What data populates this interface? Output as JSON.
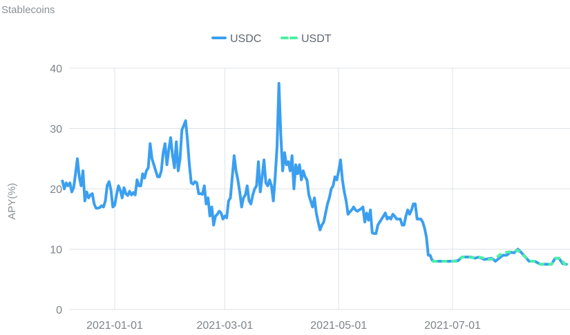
{
  "chart_data": {
    "type": "line",
    "title": "Stablecoins",
    "xlabel": "",
    "ylabel": "APY(%)",
    "ylim": [
      0,
      40
    ],
    "xlim": [
      "2020-12-01",
      "2021-08-31"
    ],
    "y_ticks": [
      "0",
      "10",
      "20",
      "30",
      "40"
    ],
    "x_ticks": [
      "2021-01-01",
      "2021-03-01",
      "2021-05-01",
      "2021-07-01"
    ],
    "grid": "vertical-and-horizontal",
    "legend": {
      "placement": "top-center"
    },
    "series": [
      {
        "name": "USDC",
        "color": "#3b9ff0",
        "dash": "solid",
        "points": [
          [
            "2020-12-04",
            21.3
          ],
          [
            "2020-12-05",
            20.0
          ],
          [
            "2020-12-06",
            21.0
          ],
          [
            "2020-12-07",
            20.5
          ],
          [
            "2020-12-08",
            21.0
          ],
          [
            "2020-12-09",
            19.5
          ],
          [
            "2020-12-10",
            20.2
          ],
          [
            "2020-12-11",
            22.5
          ],
          [
            "2020-12-12",
            25.0
          ],
          [
            "2020-12-13",
            22.0
          ],
          [
            "2020-12-14",
            20.5
          ],
          [
            "2020-12-15",
            23.0
          ],
          [
            "2020-12-16",
            18.0
          ],
          [
            "2020-12-17",
            19.5
          ],
          [
            "2020-12-18",
            18.5
          ],
          [
            "2020-12-19",
            19.0
          ],
          [
            "2020-12-20",
            19.2
          ],
          [
            "2020-12-21",
            17.5
          ],
          [
            "2020-12-22",
            16.8
          ],
          [
            "2020-12-23",
            16.8
          ],
          [
            "2020-12-24",
            16.9
          ],
          [
            "2020-12-25",
            17.2
          ],
          [
            "2020-12-26",
            17.0
          ],
          [
            "2020-12-27",
            18.0
          ],
          [
            "2020-12-28",
            20.6
          ],
          [
            "2020-12-29",
            21.2
          ],
          [
            "2020-12-30",
            19.8
          ],
          [
            "2020-12-31",
            17.0
          ],
          [
            "2021-01-01",
            17.3
          ],
          [
            "2021-01-02",
            19.0
          ],
          [
            "2021-01-03",
            20.5
          ],
          [
            "2021-01-04",
            19.8
          ],
          [
            "2021-01-05",
            18.5
          ],
          [
            "2021-01-06",
            20.2
          ],
          [
            "2021-01-07",
            19.2
          ],
          [
            "2021-01-08",
            18.9
          ],
          [
            "2021-01-09",
            19.6
          ],
          [
            "2021-01-10",
            19.0
          ],
          [
            "2021-01-11",
            19.4
          ],
          [
            "2021-01-12",
            19.0
          ],
          [
            "2021-01-13",
            21.5
          ],
          [
            "2021-01-14",
            20.5
          ],
          [
            "2021-01-15",
            20.5
          ],
          [
            "2021-01-16",
            22.5
          ],
          [
            "2021-01-17",
            21.8
          ],
          [
            "2021-01-18",
            23.0
          ],
          [
            "2021-01-19",
            23.5
          ],
          [
            "2021-01-20",
            27.5
          ],
          [
            "2021-01-21",
            25.0
          ],
          [
            "2021-01-22",
            24.0
          ],
          [
            "2021-01-23",
            23.0
          ],
          [
            "2021-01-24",
            22.0
          ],
          [
            "2021-01-25",
            22.0
          ],
          [
            "2021-01-26",
            23.0
          ],
          [
            "2021-01-27",
            26.0
          ],
          [
            "2021-01-28",
            27.5
          ],
          [
            "2021-01-29",
            24.0
          ],
          [
            "2021-01-30",
            26.5
          ],
          [
            "2021-01-31",
            28.5
          ],
          [
            "2021-02-01",
            25.5
          ],
          [
            "2021-02-02",
            23.5
          ],
          [
            "2021-02-03",
            27.8
          ],
          [
            "2021-02-04",
            23.0
          ],
          [
            "2021-02-05",
            25.0
          ],
          [
            "2021-02-06",
            29.8
          ],
          [
            "2021-02-07",
            30.5
          ],
          [
            "2021-02-08",
            31.3
          ],
          [
            "2021-02-09",
            28.0
          ],
          [
            "2021-02-10",
            24.0
          ],
          [
            "2021-02-11",
            21.0
          ],
          [
            "2021-02-12",
            20.8
          ],
          [
            "2021-02-13",
            21.2
          ],
          [
            "2021-02-14",
            21.0
          ],
          [
            "2021-02-15",
            19.2
          ],
          [
            "2021-02-16",
            19.2
          ],
          [
            "2021-02-17",
            19.1
          ],
          [
            "2021-02-18",
            20.5
          ],
          [
            "2021-02-19",
            17.5
          ],
          [
            "2021-02-20",
            18.5
          ],
          [
            "2021-02-21",
            15.5
          ],
          [
            "2021-02-22",
            17.0
          ],
          [
            "2021-02-23",
            14.0
          ],
          [
            "2021-02-24",
            15.5
          ],
          [
            "2021-02-25",
            15.8
          ],
          [
            "2021-02-26",
            16.3
          ],
          [
            "2021-02-27",
            16.0
          ],
          [
            "2021-02-28",
            15.0
          ],
          [
            "2021-03-01",
            15.5
          ],
          [
            "2021-03-02",
            15.2
          ],
          [
            "2021-03-03",
            18.0
          ],
          [
            "2021-03-04",
            18.5
          ],
          [
            "2021-03-05",
            22.0
          ],
          [
            "2021-03-06",
            25.5
          ],
          [
            "2021-03-07",
            23.0
          ],
          [
            "2021-03-08",
            21.5
          ],
          [
            "2021-03-09",
            19.5
          ],
          [
            "2021-03-10",
            17.0
          ],
          [
            "2021-03-11",
            18.5
          ],
          [
            "2021-03-12",
            19.0
          ],
          [
            "2021-03-13",
            20.5
          ],
          [
            "2021-03-14",
            18.0
          ],
          [
            "2021-03-15",
            17.5
          ],
          [
            "2021-03-16",
            19.0
          ],
          [
            "2021-03-17",
            20.0
          ],
          [
            "2021-03-18",
            20.5
          ],
          [
            "2021-03-19",
            24.5
          ],
          [
            "2021-03-20",
            19.5
          ],
          [
            "2021-03-21",
            22.0
          ],
          [
            "2021-03-22",
            24.8
          ],
          [
            "2021-03-23",
            21.0
          ],
          [
            "2021-03-24",
            20.5
          ],
          [
            "2021-03-25",
            21.5
          ],
          [
            "2021-03-26",
            20.5
          ],
          [
            "2021-03-27",
            18.0
          ],
          [
            "2021-03-28",
            22.0
          ],
          [
            "2021-03-29",
            27.0
          ],
          [
            "2021-03-30",
            37.5
          ],
          [
            "2021-03-31",
            29.0
          ],
          [
            "2021-04-01",
            23.0
          ],
          [
            "2021-04-02",
            26.0
          ],
          [
            "2021-04-03",
            24.0
          ],
          [
            "2021-04-04",
            24.5
          ],
          [
            "2021-04-05",
            23.0
          ],
          [
            "2021-04-06",
            25.5
          ],
          [
            "2021-04-07",
            20.0
          ],
          [
            "2021-04-08",
            24.0
          ],
          [
            "2021-04-09",
            22.5
          ],
          [
            "2021-04-10",
            24.0
          ],
          [
            "2021-04-11",
            21.5
          ],
          [
            "2021-04-12",
            23.0
          ],
          [
            "2021-04-13",
            22.0
          ],
          [
            "2021-04-14",
            21.5
          ],
          [
            "2021-04-15",
            19.0
          ],
          [
            "2021-04-16",
            18.0
          ],
          [
            "2021-04-17",
            17.0
          ],
          [
            "2021-04-18",
            18.5
          ],
          [
            "2021-04-19",
            16.0
          ],
          [
            "2021-04-20",
            14.5
          ],
          [
            "2021-04-21",
            13.2
          ],
          [
            "2021-04-22",
            14.0
          ],
          [
            "2021-04-23",
            14.5
          ],
          [
            "2021-04-24",
            16.0
          ],
          [
            "2021-04-25",
            17.5
          ],
          [
            "2021-04-26",
            18.5
          ],
          [
            "2021-04-27",
            20.0
          ],
          [
            "2021-04-28",
            20.5
          ],
          [
            "2021-04-29",
            22.0
          ],
          [
            "2021-04-30",
            21.5
          ],
          [
            "2021-05-01",
            23.0
          ],
          [
            "2021-05-02",
            24.8
          ],
          [
            "2021-05-03",
            21.5
          ],
          [
            "2021-05-04",
            19.5
          ],
          [
            "2021-05-05",
            18.0
          ],
          [
            "2021-05-06",
            15.8
          ],
          [
            "2021-05-07",
            16.2
          ],
          [
            "2021-05-08",
            16.5
          ],
          [
            "2021-05-09",
            17.0
          ],
          [
            "2021-05-10",
            16.5
          ],
          [
            "2021-05-11",
            16.3
          ],
          [
            "2021-05-12",
            16.5
          ],
          [
            "2021-05-13",
            16.7
          ],
          [
            "2021-05-14",
            17.0
          ],
          [
            "2021-05-15",
            14.5
          ],
          [
            "2021-05-16",
            16.0
          ],
          [
            "2021-05-17",
            14.8
          ],
          [
            "2021-05-18",
            16.5
          ],
          [
            "2021-05-19",
            12.7
          ],
          [
            "2021-05-20",
            12.6
          ],
          [
            "2021-05-21",
            12.6
          ],
          [
            "2021-05-22",
            14.0
          ],
          [
            "2021-05-23",
            14.5
          ],
          [
            "2021-05-24",
            15.0
          ],
          [
            "2021-05-25",
            15.5
          ],
          [
            "2021-05-26",
            16.0
          ],
          [
            "2021-05-27",
            15.0
          ],
          [
            "2021-05-28",
            15.3
          ],
          [
            "2021-05-29",
            15.0
          ],
          [
            "2021-05-30",
            15.8
          ],
          [
            "2021-05-31",
            15.5
          ],
          [
            "2021-06-01",
            15.0
          ],
          [
            "2021-06-02",
            15.0
          ],
          [
            "2021-06-03",
            15.0
          ],
          [
            "2021-06-04",
            14.0
          ],
          [
            "2021-06-05",
            14.0
          ],
          [
            "2021-06-06",
            15.5
          ],
          [
            "2021-06-07",
            16.5
          ],
          [
            "2021-06-08",
            15.8
          ],
          [
            "2021-06-09",
            16.5
          ],
          [
            "2021-06-10",
            17.5
          ],
          [
            "2021-06-11",
            17.5
          ],
          [
            "2021-06-12",
            15.0
          ],
          [
            "2021-06-13",
            15.0
          ],
          [
            "2021-06-14",
            15.0
          ],
          [
            "2021-06-15",
            14.5
          ],
          [
            "2021-06-16",
            13.5
          ],
          [
            "2021-06-17",
            12.0
          ],
          [
            "2021-06-18",
            9.0
          ],
          [
            "2021-06-19",
            9.0
          ],
          [
            "2021-06-20",
            8.2
          ],
          [
            "2021-06-21",
            8.0
          ],
          [
            "2021-06-22",
            8.0
          ],
          [
            "2021-06-25",
            8.0
          ],
          [
            "2021-06-28",
            8.0
          ],
          [
            "2021-07-01",
            8.0
          ],
          [
            "2021-07-04",
            8.1
          ],
          [
            "2021-07-06",
            8.7
          ],
          [
            "2021-07-08",
            8.7
          ],
          [
            "2021-07-11",
            8.7
          ],
          [
            "2021-07-13",
            8.5
          ],
          [
            "2021-07-15",
            8.7
          ],
          [
            "2021-07-18",
            8.3
          ],
          [
            "2021-07-20",
            8.4
          ],
          [
            "2021-07-22",
            8.5
          ],
          [
            "2021-07-24",
            8.0
          ],
          [
            "2021-07-26",
            8.5
          ],
          [
            "2021-07-28",
            9.0
          ],
          [
            "2021-07-30",
            9.0
          ],
          [
            "2021-08-01",
            9.5
          ],
          [
            "2021-08-03",
            9.4
          ],
          [
            "2021-08-05",
            10.0
          ],
          [
            "2021-08-07",
            9.4
          ],
          [
            "2021-08-09",
            8.7
          ],
          [
            "2021-08-11",
            8.0
          ],
          [
            "2021-08-14",
            8.0
          ],
          [
            "2021-08-17",
            7.5
          ],
          [
            "2021-08-20",
            7.5
          ],
          [
            "2021-08-23",
            7.5
          ],
          [
            "2021-08-25",
            8.5
          ],
          [
            "2021-08-27",
            8.5
          ],
          [
            "2021-08-29",
            7.6
          ],
          [
            "2021-08-31",
            7.5
          ]
        ]
      },
      {
        "name": "USDT",
        "color": "#4bf0a4",
        "dash": "dashed",
        "points": [
          [
            "2021-06-20",
            8.0
          ],
          [
            "2021-06-25",
            8.0
          ],
          [
            "2021-06-30",
            8.0
          ],
          [
            "2021-07-04",
            8.0
          ],
          [
            "2021-07-06",
            8.7
          ],
          [
            "2021-07-09",
            8.7
          ],
          [
            "2021-07-12",
            8.6
          ],
          [
            "2021-07-15",
            8.7
          ],
          [
            "2021-07-18",
            8.5
          ],
          [
            "2021-07-21",
            8.3
          ],
          [
            "2021-07-24",
            8.5
          ],
          [
            "2021-07-27",
            9.2
          ],
          [
            "2021-07-30",
            9.5
          ],
          [
            "2021-08-02",
            9.6
          ],
          [
            "2021-08-05",
            9.8
          ],
          [
            "2021-08-08",
            9.0
          ],
          [
            "2021-08-11",
            8.0
          ],
          [
            "2021-08-14",
            8.0
          ],
          [
            "2021-08-17",
            7.5
          ],
          [
            "2021-08-20",
            7.5
          ],
          [
            "2021-08-23",
            7.5
          ],
          [
            "2021-08-25",
            8.5
          ],
          [
            "2021-08-28",
            8.5
          ],
          [
            "2021-08-30",
            7.5
          ],
          [
            "2021-08-31",
            7.5
          ]
        ]
      }
    ]
  }
}
